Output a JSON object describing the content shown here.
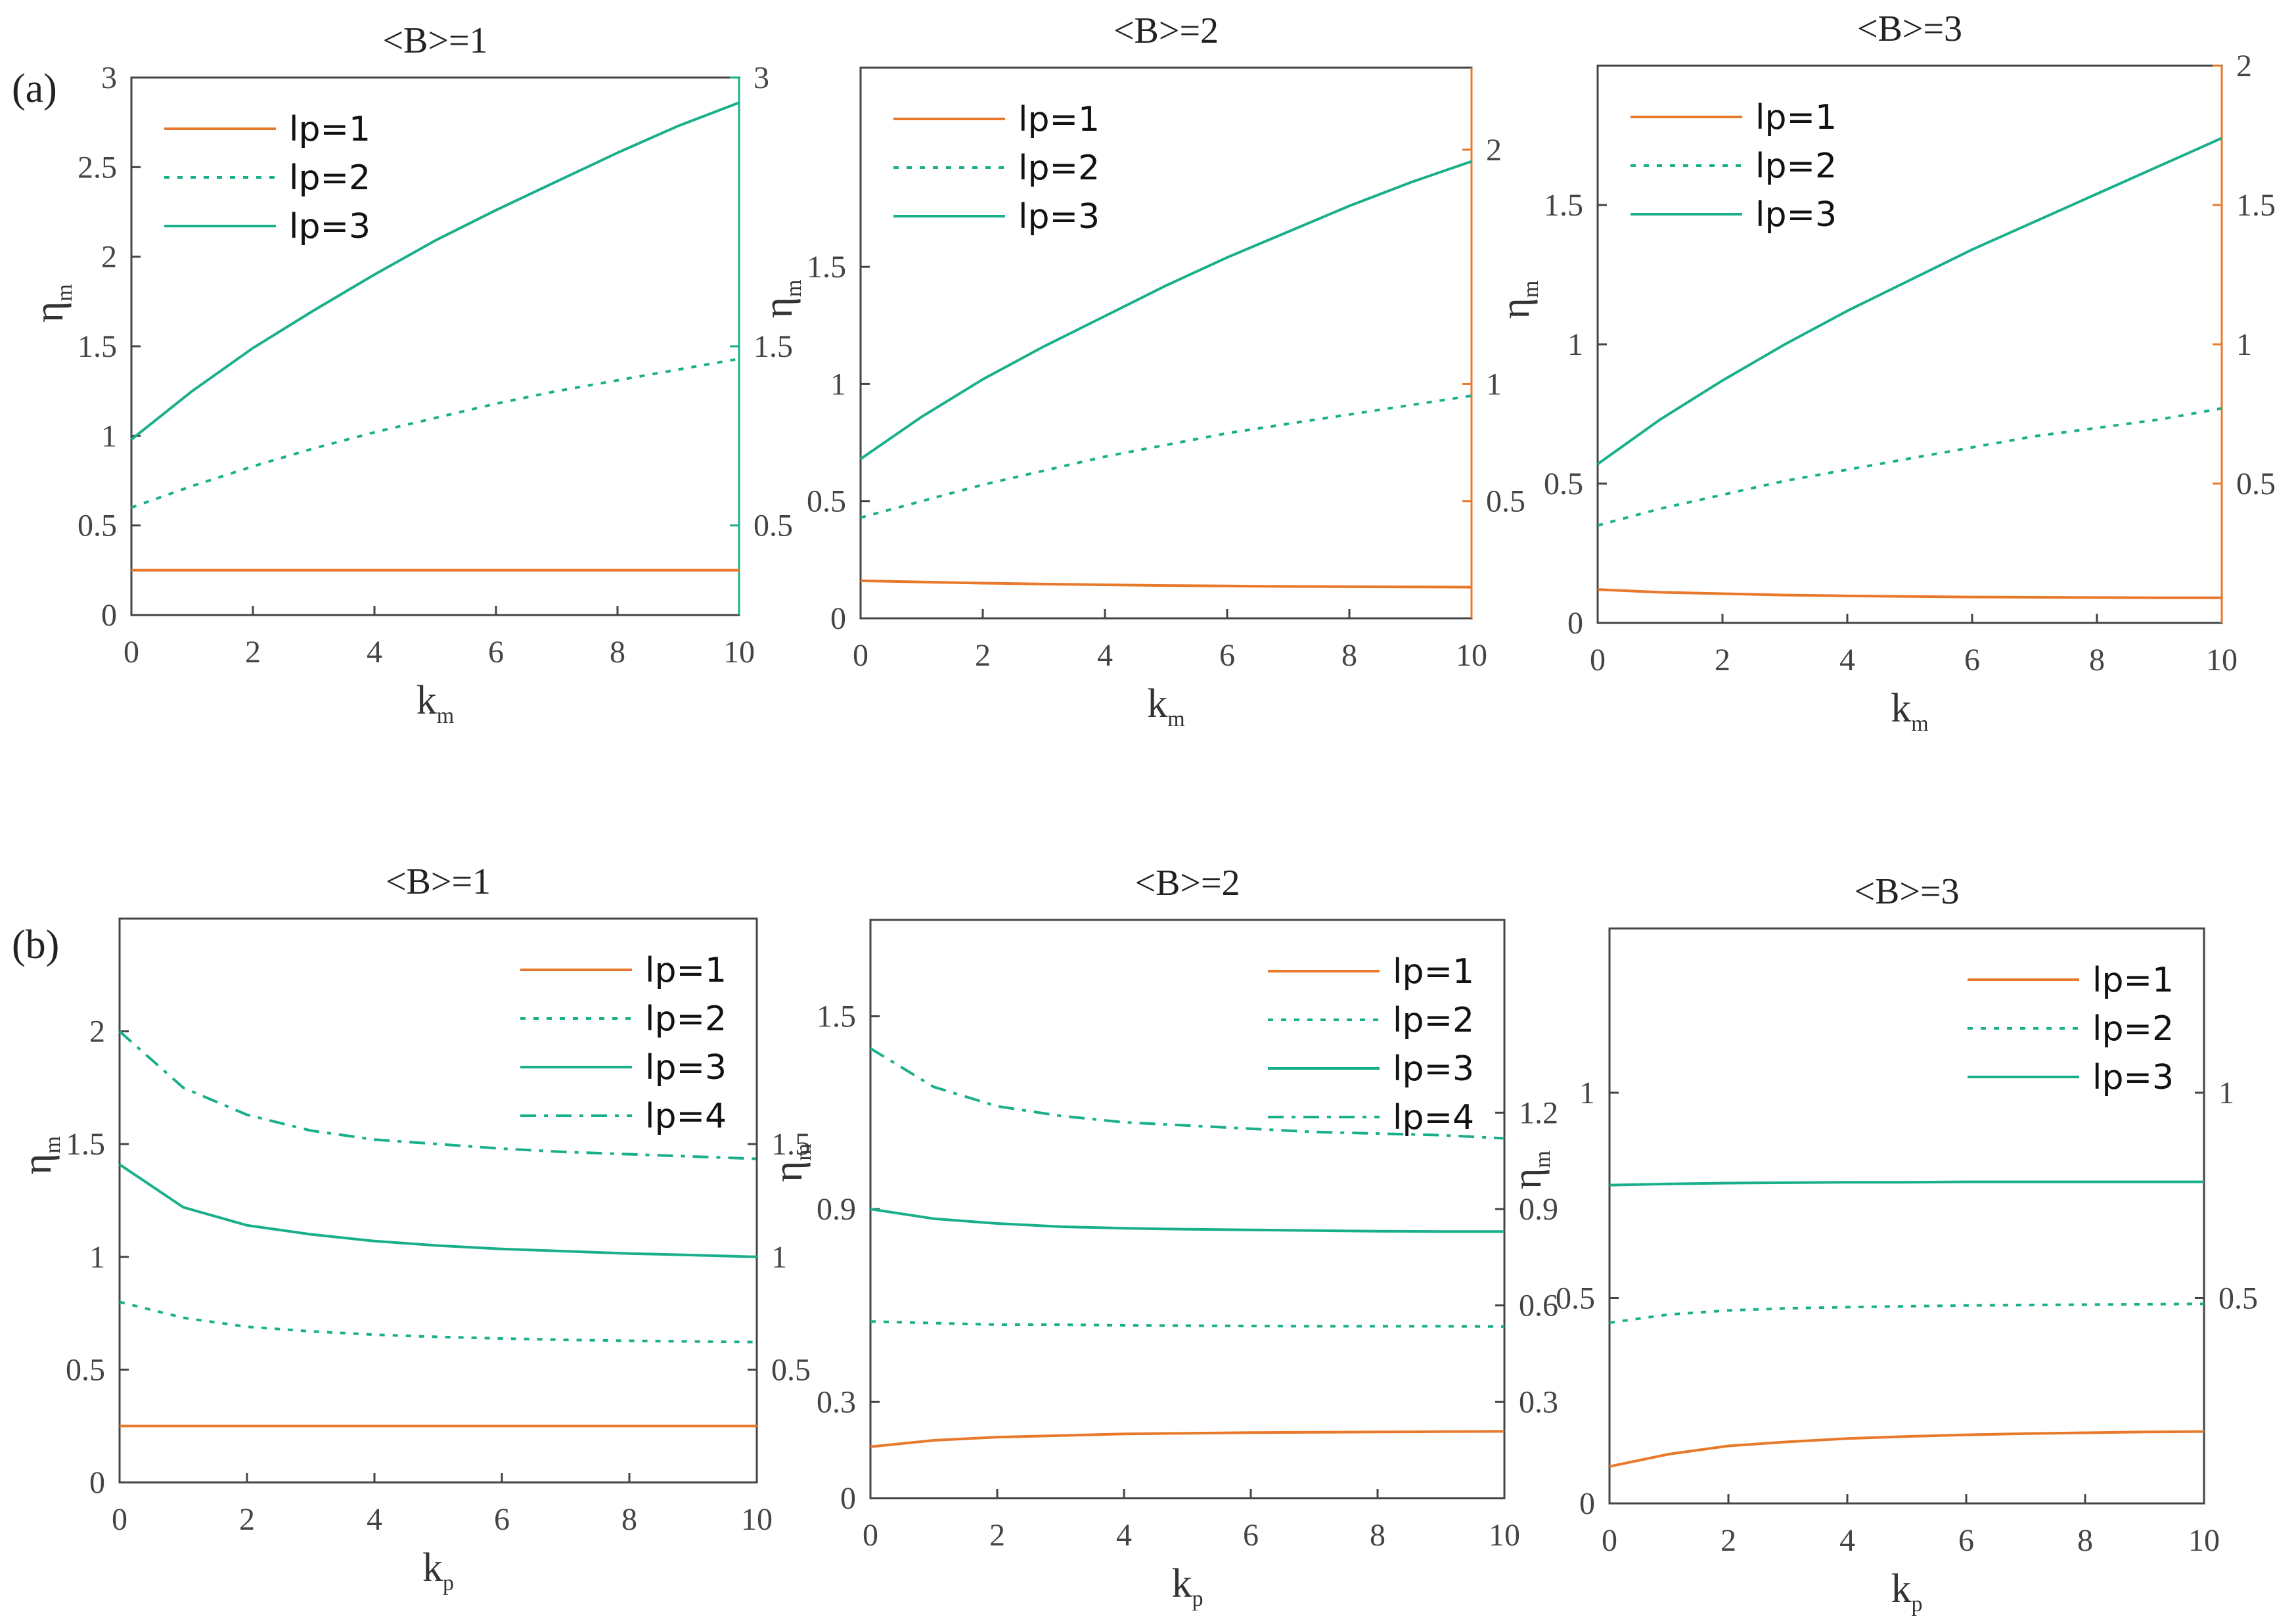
{
  "figure": {
    "panel_labels": [
      "(a)",
      "(b)"
    ]
  },
  "colors": {
    "lp1": "#E8782A",
    "teal": "#1AAF8B",
    "axis": "#444444"
  },
  "chart_data": [
    {
      "type": "line",
      "row": 0,
      "col": 0,
      "title": "<B>=1",
      "xlabel": "k",
      "xlabel_sub": "m",
      "ylabel": "η",
      "ylabel_sub": "m",
      "xlim": [
        0,
        10
      ],
      "ylim": [
        0,
        3
      ],
      "xticks": [
        0,
        2,
        4,
        6,
        8,
        10
      ],
      "yticks": [
        0,
        0.5,
        1,
        1.5,
        2,
        2.5,
        3
      ],
      "yticklabels": [
        "0",
        "0.5",
        "1",
        "1.5",
        "2",
        "2.5",
        "3"
      ],
      "right_axis": {
        "color": "teal",
        "ylim": [
          0,
          3
        ],
        "ticks": [
          0.5,
          1.5,
          3
        ],
        "labels": [
          "0.5",
          "1.5",
          "3"
        ]
      },
      "legend": "top-left",
      "series": [
        {
          "name": "lp=1",
          "style": "solid",
          "color": "lp1",
          "x": [
            0,
            1,
            2,
            3,
            4,
            5,
            6,
            7,
            8,
            9,
            10
          ],
          "y": [
            0.25,
            0.25,
            0.25,
            0.25,
            0.25,
            0.25,
            0.25,
            0.25,
            0.25,
            0.25,
            0.25
          ]
        },
        {
          "name": "lp=2",
          "style": "dotted",
          "color": "teal",
          "x": [
            0,
            1,
            2,
            3,
            4,
            5,
            6,
            7,
            8,
            9,
            10
          ],
          "y": [
            0.6,
            0.72,
            0.83,
            0.93,
            1.02,
            1.1,
            1.18,
            1.25,
            1.31,
            1.37,
            1.43
          ]
        },
        {
          "name": "lp=3",
          "style": "solid",
          "color": "teal",
          "x": [
            0,
            1,
            2,
            3,
            4,
            5,
            6,
            7,
            8,
            9,
            10
          ],
          "y": [
            0.98,
            1.25,
            1.49,
            1.7,
            1.9,
            2.09,
            2.26,
            2.42,
            2.58,
            2.73,
            2.86
          ]
        }
      ]
    },
    {
      "type": "line",
      "row": 0,
      "col": 1,
      "title": "<B>=2",
      "xlabel": "k",
      "xlabel_sub": "m",
      "ylabel": "η",
      "ylabel_sub": "m",
      "xlim": [
        0,
        10
      ],
      "ylim": [
        0,
        2.35
      ],
      "xticks": [
        0,
        2,
        4,
        6,
        8,
        10
      ],
      "yticks": [
        0,
        0.5,
        1,
        1.5
      ],
      "yticklabels": [
        "0",
        "0.5",
        "1",
        "1.5"
      ],
      "right_axis": {
        "color": "lp1",
        "ylim": [
          0,
          2.35
        ],
        "ticks": [
          0.5,
          1,
          2
        ],
        "labels": [
          "0.5",
          "1",
          "2"
        ]
      },
      "legend": "top-left",
      "series": [
        {
          "name": "lp=1",
          "style": "solid",
          "color": "lp1",
          "x": [
            0,
            1,
            2,
            3,
            4,
            5,
            6,
            7,
            8,
            9,
            10
          ],
          "y": [
            0.16,
            0.155,
            0.15,
            0.146,
            0.143,
            0.14,
            0.138,
            0.136,
            0.135,
            0.134,
            0.133
          ]
        },
        {
          "name": "lp=2",
          "style": "dotted",
          "color": "teal",
          "x": [
            0,
            1,
            2,
            3,
            4,
            5,
            6,
            7,
            8,
            9,
            10
          ],
          "y": [
            0.43,
            0.5,
            0.57,
            0.63,
            0.69,
            0.74,
            0.79,
            0.83,
            0.87,
            0.91,
            0.95
          ]
        },
        {
          "name": "lp=3",
          "style": "solid",
          "color": "teal",
          "x": [
            0,
            1,
            2,
            3,
            4,
            5,
            6,
            7,
            8,
            9,
            10
          ],
          "y": [
            0.68,
            0.86,
            1.02,
            1.16,
            1.29,
            1.42,
            1.54,
            1.65,
            1.76,
            1.86,
            1.95
          ]
        }
      ]
    },
    {
      "type": "line",
      "row": 0,
      "col": 2,
      "title": "<B>=3",
      "xlabel": "k",
      "xlabel_sub": "m",
      "ylabel": "η",
      "ylabel_sub": "m",
      "xlim": [
        0,
        10
      ],
      "ylim": [
        0,
        2.0
      ],
      "xticks": [
        0,
        2,
        4,
        6,
        8,
        10
      ],
      "yticks": [
        0,
        0.5,
        1,
        1.5
      ],
      "yticklabels": [
        "0",
        "0.5",
        "1",
        "1.5"
      ],
      "right_axis": {
        "color": "lp1",
        "ylim": [
          0,
          2.0
        ],
        "ticks": [
          0.5,
          1,
          1.5,
          2
        ],
        "labels": [
          "0.5",
          "1",
          "1.5",
          "2"
        ]
      },
      "legend": "top-left",
      "series": [
        {
          "name": "lp=1",
          "style": "solid",
          "color": "lp1",
          "x": [
            0,
            1,
            2,
            3,
            4,
            5,
            6,
            7,
            8,
            9,
            10
          ],
          "y": [
            0.12,
            0.11,
            0.105,
            0.1,
            0.097,
            0.095,
            0.093,
            0.092,
            0.091,
            0.09,
            0.09
          ]
        },
        {
          "name": "lp=2",
          "style": "dotted",
          "color": "teal",
          "x": [
            0,
            1,
            2,
            3,
            4,
            5,
            6,
            7,
            8,
            9,
            10
          ],
          "y": [
            0.35,
            0.41,
            0.46,
            0.51,
            0.55,
            0.59,
            0.63,
            0.67,
            0.7,
            0.73,
            0.77
          ]
        },
        {
          "name": "lp=3",
          "style": "solid",
          "color": "teal",
          "x": [
            0,
            1,
            2,
            3,
            4,
            5,
            6,
            7,
            8,
            9,
            10
          ],
          "y": [
            0.57,
            0.73,
            0.87,
            1.0,
            1.12,
            1.23,
            1.34,
            1.44,
            1.54,
            1.64,
            1.74
          ]
        }
      ]
    },
    {
      "type": "line",
      "row": 1,
      "col": 0,
      "title": "<B>=1",
      "xlabel": "k",
      "xlabel_sub": "p",
      "ylabel": "η",
      "ylabel_sub": "m",
      "xlim": [
        0,
        10
      ],
      "ylim": [
        0,
        2.5
      ],
      "xticks": [
        0,
        2,
        4,
        6,
        8,
        10
      ],
      "yticks": [
        0,
        0.5,
        1,
        1.5,
        2
      ],
      "yticklabels": [
        "0",
        "0.5",
        "1",
        "1.5",
        "2"
      ],
      "right_axis": {
        "color": "axis",
        "ylim": [
          0,
          2.5
        ],
        "ticks": [
          0.5,
          1,
          1.5
        ],
        "labels": [
          "0.5",
          "1",
          "1.5"
        ]
      },
      "legend": "top-right",
      "series": [
        {
          "name": "lp=1",
          "style": "solid",
          "color": "lp1",
          "x": [
            0,
            1,
            2,
            3,
            4,
            5,
            6,
            7,
            8,
            9,
            10
          ],
          "y": [
            0.25,
            0.25,
            0.25,
            0.25,
            0.25,
            0.25,
            0.25,
            0.25,
            0.25,
            0.25,
            0.25
          ]
        },
        {
          "name": "lp=2",
          "style": "dotted",
          "color": "teal",
          "x": [
            0,
            1,
            2,
            3,
            4,
            5,
            6,
            7,
            8,
            9,
            10
          ],
          "y": [
            0.8,
            0.73,
            0.69,
            0.67,
            0.655,
            0.645,
            0.638,
            0.632,
            0.628,
            0.625,
            0.622
          ]
        },
        {
          "name": "lp=3",
          "style": "solid",
          "color": "teal",
          "x": [
            0,
            1,
            2,
            3,
            4,
            5,
            6,
            7,
            8,
            9,
            10
          ],
          "y": [
            1.41,
            1.22,
            1.14,
            1.1,
            1.07,
            1.05,
            1.035,
            1.025,
            1.015,
            1.008,
            1.0
          ]
        },
        {
          "name": "lp=4",
          "style": "dashdot",
          "color": "teal",
          "x": [
            0,
            1,
            2,
            3,
            4,
            5,
            6,
            7,
            8,
            9,
            10
          ],
          "y": [
            2.0,
            1.75,
            1.63,
            1.56,
            1.52,
            1.5,
            1.48,
            1.465,
            1.455,
            1.445,
            1.435
          ]
        }
      ]
    },
    {
      "type": "line",
      "row": 1,
      "col": 1,
      "title": "<B>=2",
      "xlabel": "k",
      "xlabel_sub": "p",
      "ylabel": "η",
      "ylabel_sub": "m",
      "xlim": [
        0,
        10
      ],
      "ylim": [
        0,
        1.8
      ],
      "xticks": [
        0,
        2,
        4,
        6,
        8,
        10
      ],
      "yticks": [
        0,
        0.3,
        0.9,
        1.5
      ],
      "yticklabels": [
        "0",
        "0.3",
        "0.9",
        "1.5"
      ],
      "right_axis": {
        "color": "axis",
        "ylim": [
          0,
          1.8
        ],
        "ticks": [
          0.3,
          0.6,
          0.9,
          1.2
        ],
        "labels": [
          "0.3",
          "0.6",
          "0.9",
          "1.2"
        ]
      },
      "legend": "top-right",
      "series": [
        {
          "name": "lp=1",
          "style": "solid",
          "color": "lp1",
          "x": [
            0,
            1,
            2,
            3,
            4,
            5,
            6,
            7,
            8,
            9,
            10
          ],
          "y": [
            0.16,
            0.18,
            0.19,
            0.195,
            0.2,
            0.202,
            0.204,
            0.205,
            0.206,
            0.207,
            0.208
          ]
        },
        {
          "name": "lp=2",
          "style": "dotted",
          "color": "teal",
          "x": [
            0,
            1,
            2,
            3,
            4,
            5,
            6,
            7,
            8,
            9,
            10
          ],
          "y": [
            0.55,
            0.545,
            0.54,
            0.54,
            0.538,
            0.537,
            0.536,
            0.535,
            0.535,
            0.535,
            0.534
          ]
        },
        {
          "name": "lp=3",
          "style": "solid",
          "color": "teal",
          "x": [
            0,
            1,
            2,
            3,
            4,
            5,
            6,
            7,
            8,
            9,
            10
          ],
          "y": [
            0.9,
            0.87,
            0.855,
            0.845,
            0.84,
            0.837,
            0.835,
            0.833,
            0.831,
            0.83,
            0.83
          ]
        },
        {
          "name": "lp=4",
          "style": "dashdot",
          "color": "teal",
          "x": [
            0,
            1,
            2,
            3,
            4,
            5,
            6,
            7,
            8,
            9,
            10
          ],
          "y": [
            1.4,
            1.28,
            1.22,
            1.19,
            1.17,
            1.16,
            1.15,
            1.14,
            1.135,
            1.13,
            1.12
          ]
        }
      ]
    },
    {
      "type": "line",
      "row": 1,
      "col": 2,
      "title": "<B>=3",
      "xlabel": "k",
      "xlabel_sub": "p",
      "ylabel": "η",
      "ylabel_sub": "m",
      "xlim": [
        0,
        10
      ],
      "ylim": [
        0,
        1.4
      ],
      "xticks": [
        0,
        2,
        4,
        6,
        8,
        10
      ],
      "yticks": [
        0,
        0.5,
        1
      ],
      "yticklabels": [
        "0",
        "0.5",
        "1"
      ],
      "right_axis": {
        "color": "axis",
        "ylim": [
          0,
          1.4
        ],
        "ticks": [
          0.5,
          1
        ],
        "labels": [
          "0.5",
          "1"
        ]
      },
      "legend": "top-right",
      "series": [
        {
          "name": "lp=1",
          "style": "solid",
          "color": "lp1",
          "x": [
            0,
            1,
            2,
            3,
            4,
            5,
            6,
            7,
            8,
            9,
            10
          ],
          "y": [
            0.09,
            0.12,
            0.14,
            0.15,
            0.158,
            0.163,
            0.167,
            0.17,
            0.172,
            0.174,
            0.175
          ]
        },
        {
          "name": "lp=2",
          "style": "dotted",
          "color": "teal",
          "x": [
            0,
            1,
            2,
            3,
            4,
            5,
            6,
            7,
            8,
            9,
            10
          ],
          "y": [
            0.44,
            0.46,
            0.47,
            0.475,
            0.478,
            0.48,
            0.482,
            0.483,
            0.484,
            0.485,
            0.486
          ]
        },
        {
          "name": "lp=3",
          "style": "solid",
          "color": "teal",
          "x": [
            0,
            1,
            2,
            3,
            4,
            5,
            6,
            7,
            8,
            9,
            10
          ],
          "y": [
            0.775,
            0.778,
            0.78,
            0.781,
            0.782,
            0.782,
            0.783,
            0.783,
            0.783,
            0.783,
            0.783
          ]
        }
      ]
    }
  ]
}
